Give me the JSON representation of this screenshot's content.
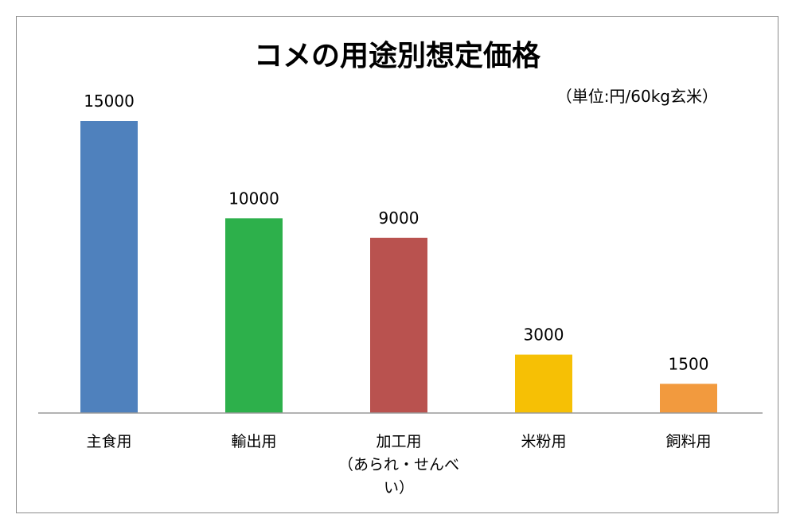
{
  "chart_data": {
    "type": "bar",
    "title": "コメの用途別想定価格",
    "unit_note": "（単位:円/60kg玄米）",
    "categories": [
      [
        "主食用"
      ],
      [
        "輸出用"
      ],
      [
        "加工用",
        "（あられ・せんべ",
        "い）"
      ],
      [
        "米粉用"
      ],
      [
        "飼料用"
      ]
    ],
    "values": [
      15000,
      10000,
      9000,
      3000,
      1500
    ],
    "value_labels": [
      "15000",
      "10000",
      "9000",
      "3000",
      "1500"
    ],
    "colors": [
      "#4f81bd",
      "#2db04b",
      "#b9524f",
      "#f6c005",
      "#f29a3e"
    ],
    "ylim": [
      0,
      15000
    ],
    "grid": false,
    "legend": "none",
    "xlabel": "",
    "ylabel": ""
  }
}
